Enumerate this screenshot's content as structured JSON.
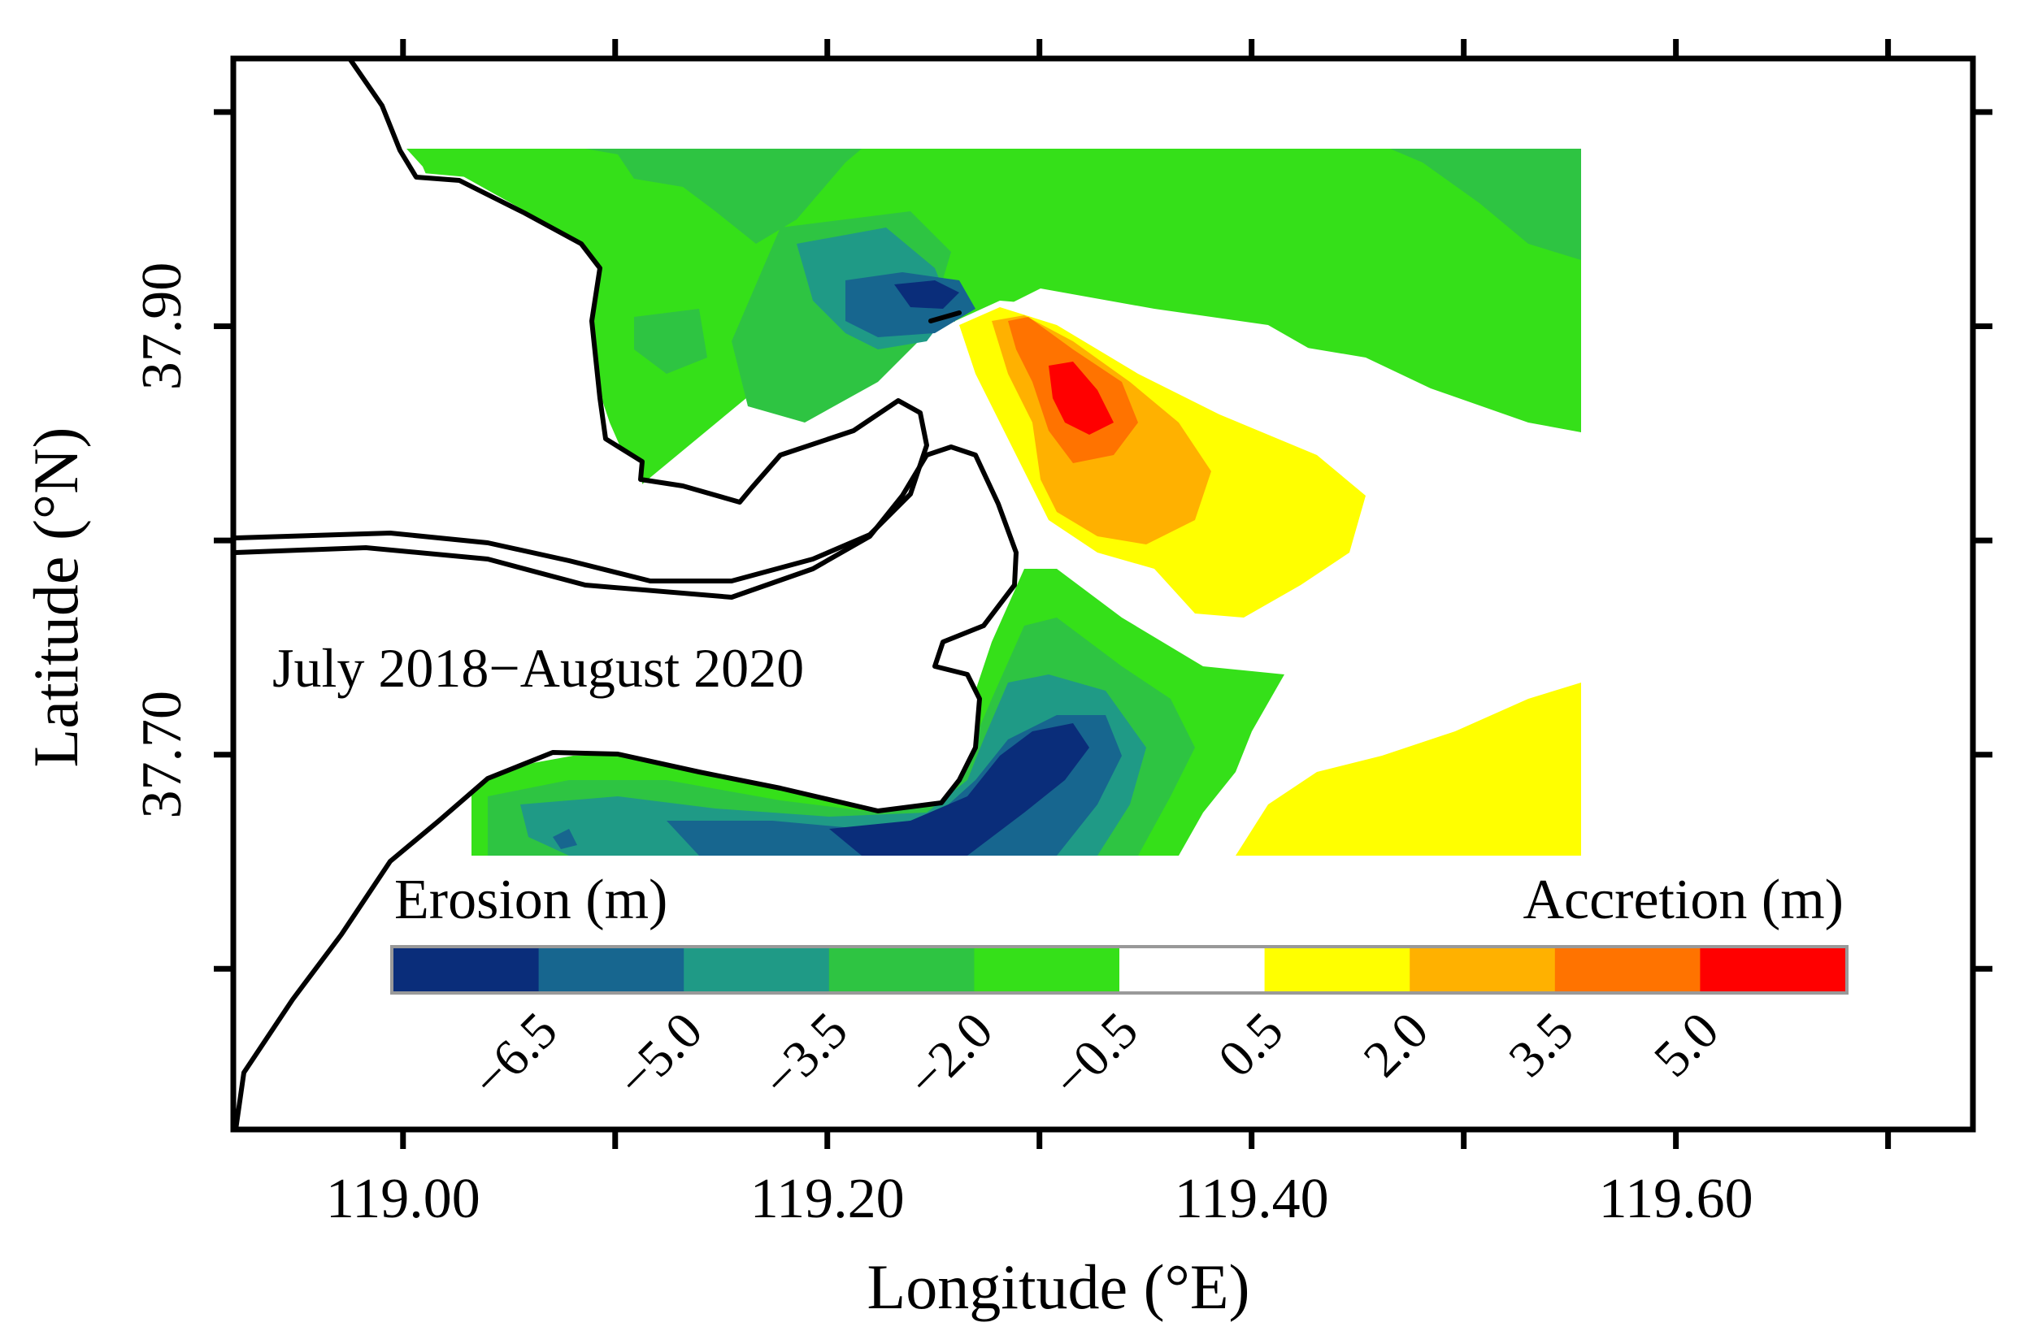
{
  "map": {
    "period_label": "July 2018−August 2020",
    "x_axis": {
      "title": "Longitude (°E)",
      "range": [
        118.92,
        119.74
      ],
      "ticks": [
        {
          "value": 119.0,
          "label": "119.00"
        },
        {
          "value": 119.1,
          "label": ""
        },
        {
          "value": 119.2,
          "label": "119.20"
        },
        {
          "value": 119.3,
          "label": ""
        },
        {
          "value": 119.4,
          "label": "119.40"
        },
        {
          "value": 119.5,
          "label": ""
        },
        {
          "value": 119.6,
          "label": "119.60"
        },
        {
          "value": 119.7,
          "label": ""
        }
      ]
    },
    "y_axis": {
      "title": "Latitude (°N)",
      "range": [
        37.525,
        38.025
      ],
      "ticks": [
        {
          "value": 38.0,
          "label": ""
        },
        {
          "value": 37.9,
          "label": "37.90"
        },
        {
          "value": 37.8,
          "label": ""
        },
        {
          "value": 37.7,
          "label": "37.70"
        },
        {
          "value": 37.6,
          "label": ""
        }
      ]
    }
  },
  "legend": {
    "erosion_title": "Erosion (m)",
    "accretion_title": "Accretion (m)",
    "bins": [
      {
        "range": "< -6.5",
        "color": "#0a2d7a"
      },
      {
        "range": "-6.5 to -5.0",
        "color": "#17668f"
      },
      {
        "range": "-5.0 to -3.5",
        "color": "#1f9a86"
      },
      {
        "range": "-3.5 to -2.0",
        "color": "#2ec442"
      },
      {
        "range": "-2.0 to -0.5",
        "color": "#35e019"
      },
      {
        "range": "-0.5 to 0.5",
        "color": "#ffffff"
      },
      {
        "range": "0.5 to 2.0",
        "color": "#ffff00"
      },
      {
        "range": "2.0 to 3.5",
        "color": "#ffb100"
      },
      {
        "range": "3.5 to 5.0",
        "color": "#ff7300"
      },
      {
        "range": "> 5.0",
        "color": "#ff0000"
      }
    ],
    "boundary_labels": [
      "−6.5",
      "−5.0",
      "−3.5",
      "−2.0",
      "−0.5",
      "0.5",
      "2.0",
      "3.5",
      "5.0"
    ]
  }
}
